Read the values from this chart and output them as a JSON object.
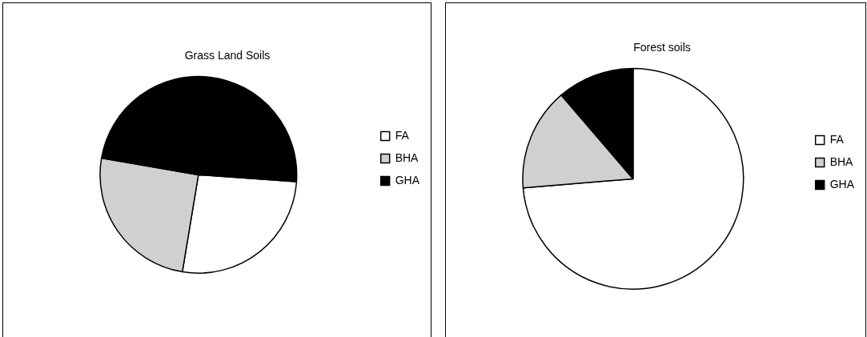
{
  "chart_data": [
    {
      "type": "pie",
      "title": "Grass Land Soils",
      "categories": [
        "FA",
        "BHA",
        "GHA"
      ],
      "values": [
        26.5,
        25.1,
        48.4
      ],
      "colors": [
        "#ffffff",
        "#d0d0d0",
        "#000000"
      ],
      "legend": "right"
    },
    {
      "type": "pie",
      "title": "Forest soils",
      "categories": [
        "FA",
        "BHA",
        "GHA"
      ],
      "values": [
        73.7,
        15,
        11.3
      ],
      "colors": [
        "#ffffff",
        "#d0d0d0",
        "#000000"
      ],
      "legend": "right"
    }
  ]
}
